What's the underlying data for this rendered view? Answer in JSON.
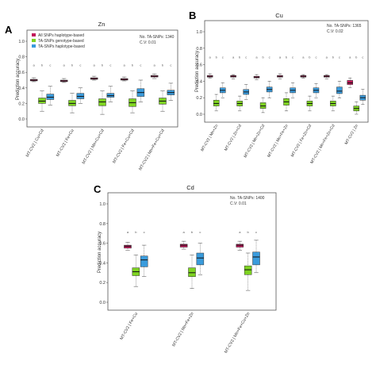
{
  "colors": {
    "all": "#c2185b",
    "geno": "#7ed321",
    "hap": "#3a9bdc"
  },
  "legend": [
    {
      "key": "all",
      "label": "All SNPs haplotype-based"
    },
    {
      "key": "geno",
      "label": "TA-SNPs genotype-based"
    },
    {
      "key": "hap",
      "label": "TA-SNPs haplotype-based"
    }
  ],
  "chart_data": [
    {
      "type": "box",
      "panel": "A",
      "title": "Zn",
      "ylabel": "Prediction accuracy",
      "ylim": [
        0,
        1.0
      ],
      "yticks": [
        "0.0",
        "0.2",
        "0.4",
        "0.6",
        "0.8",
        "1.0"
      ],
      "annotations": [
        "No. TA-SNPs: 1340",
        "C.V: 0.01"
      ],
      "categories": [
        "MT-CV2 | Cu+Cd",
        "MT-CV2 | Fe+Cu",
        "MT-CV2 | Mn+Cu+Cd",
        "MT-CV2 | Fe+Cu+Cd",
        "MT-CV2 | Mn+Fe+Cu+Cd"
      ],
      "series": [
        {
          "key": "all",
          "name": "All SNPs haplotype-based",
          "boxes": [
            {
              "min": 0.48,
              "q1": 0.49,
              "med": 0.5,
              "q3": 0.51,
              "max": 0.53
            },
            {
              "min": 0.47,
              "q1": 0.48,
              "med": 0.49,
              "q3": 0.5,
              "max": 0.52
            },
            {
              "min": 0.5,
              "q1": 0.51,
              "med": 0.52,
              "q3": 0.53,
              "max": 0.55
            },
            {
              "min": 0.49,
              "q1": 0.5,
              "med": 0.51,
              "q3": 0.52,
              "max": 0.54
            },
            {
              "min": 0.52,
              "q1": 0.54,
              "med": 0.55,
              "q3": 0.56,
              "max": 0.58
            }
          ]
        },
        {
          "key": "geno",
          "name": "TA-SNPs genotype-based",
          "boxes": [
            {
              "min": 0.1,
              "q1": 0.2,
              "med": 0.23,
              "q3": 0.27,
              "max": 0.36
            },
            {
              "min": 0.08,
              "q1": 0.17,
              "med": 0.2,
              "q3": 0.24,
              "max": 0.33
            },
            {
              "min": 0.06,
              "q1": 0.17,
              "med": 0.22,
              "q3": 0.26,
              "max": 0.36
            },
            {
              "min": 0.08,
              "q1": 0.16,
              "med": 0.21,
              "q3": 0.26,
              "max": 0.36
            },
            {
              "min": 0.1,
              "q1": 0.19,
              "med": 0.23,
              "q3": 0.27,
              "max": 0.36
            }
          ]
        },
        {
          "key": "hap",
          "name": "TA-SNPs haplotype-based",
          "boxes": [
            {
              "min": 0.18,
              "q1": 0.25,
              "med": 0.28,
              "q3": 0.32,
              "max": 0.42
            },
            {
              "min": 0.2,
              "q1": 0.26,
              "med": 0.29,
              "q3": 0.33,
              "max": 0.4
            },
            {
              "min": 0.22,
              "q1": 0.28,
              "med": 0.3,
              "q3": 0.33,
              "max": 0.42
            },
            {
              "min": 0.22,
              "q1": 0.29,
              "med": 0.34,
              "q3": 0.39,
              "max": 0.5
            },
            {
              "min": 0.24,
              "q1": 0.31,
              "med": 0.34,
              "q3": 0.37,
              "max": 0.46
            }
          ]
        }
      ],
      "sig_y": 0.68,
      "sig": [
        [
          "a",
          "b",
          "c"
        ],
        [
          "a",
          "b",
          "c"
        ],
        [
          "a",
          "b",
          "c"
        ],
        [
          "a",
          "b",
          "c"
        ],
        [
          "a",
          "b",
          "c"
        ]
      ]
    },
    {
      "type": "box",
      "panel": "B",
      "title": "Cu",
      "ylabel": "Prediction accuracy",
      "ylim": [
        0,
        1.0
      ],
      "yticks": [
        "0.0",
        "0.2",
        "0.4",
        "0.6",
        "0.8",
        "1.0"
      ],
      "annotations": [
        "No. TA-SNPs: 1365",
        "C.V: 0.02"
      ],
      "categories": [
        "MT-CV2 | Mn+Zn",
        "MT-CV2 | Zn+Cd",
        "MT-CV2 | Mn+Zn+Cd",
        "MT-CV2 | Mn+Fe+Zn",
        "MT-CV2 | Fe+Zn+Cd",
        "MT-CV2 | Mn+Fe+Zn+Cd",
        "MT-CV2 | Zn"
      ],
      "series": [
        {
          "key": "all",
          "name": "All SNPs haplotype-based",
          "boxes": [
            {
              "min": 0.44,
              "q1": 0.45,
              "med": 0.46,
              "q3": 0.47,
              "max": 0.49
            },
            {
              "min": 0.43,
              "q1": 0.45,
              "med": 0.46,
              "q3": 0.47,
              "max": 0.48
            },
            {
              "min": 0.42,
              "q1": 0.44,
              "med": 0.45,
              "q3": 0.46,
              "max": 0.48
            },
            {
              "min": 0.43,
              "q1": 0.45,
              "med": 0.46,
              "q3": 0.47,
              "max": 0.49
            },
            {
              "min": 0.44,
              "q1": 0.45,
              "med": 0.46,
              "q3": 0.47,
              "max": 0.48
            },
            {
              "min": 0.43,
              "q1": 0.45,
              "med": 0.46,
              "q3": 0.47,
              "max": 0.48
            },
            {
              "min": 0.32,
              "q1": 0.36,
              "med": 0.38,
              "q3": 0.41,
              "max": 0.44
            }
          ]
        },
        {
          "key": "geno",
          "name": "TA-SNPs genotype-based",
          "boxes": [
            {
              "min": 0.04,
              "q1": 0.1,
              "med": 0.13,
              "q3": 0.17,
              "max": 0.24
            },
            {
              "min": 0.04,
              "q1": 0.1,
              "med": 0.13,
              "q3": 0.16,
              "max": 0.22
            },
            {
              "min": 0.02,
              "q1": 0.07,
              "med": 0.1,
              "q3": 0.14,
              "max": 0.2
            },
            {
              "min": 0.04,
              "q1": 0.11,
              "med": 0.15,
              "q3": 0.19,
              "max": 0.26
            },
            {
              "min": 0.04,
              "q1": 0.1,
              "med": 0.13,
              "q3": 0.16,
              "max": 0.22
            },
            {
              "min": 0.04,
              "q1": 0.1,
              "med": 0.13,
              "q3": 0.16,
              "max": 0.22
            },
            {
              "min": 0.0,
              "q1": 0.04,
              "med": 0.07,
              "q3": 0.1,
              "max": 0.15
            }
          ]
        },
        {
          "key": "hap",
          "name": "TA-SNPs haplotype-based",
          "boxes": [
            {
              "min": 0.2,
              "q1": 0.26,
              "med": 0.29,
              "q3": 0.32,
              "max": 0.38
            },
            {
              "min": 0.18,
              "q1": 0.24,
              "med": 0.27,
              "q3": 0.3,
              "max": 0.36
            },
            {
              "min": 0.2,
              "q1": 0.27,
              "med": 0.3,
              "q3": 0.33,
              "max": 0.4
            },
            {
              "min": 0.2,
              "q1": 0.26,
              "med": 0.29,
              "q3": 0.32,
              "max": 0.38
            },
            {
              "min": 0.2,
              "q1": 0.26,
              "med": 0.29,
              "q3": 0.32,
              "max": 0.37
            },
            {
              "min": 0.2,
              "q1": 0.25,
              "med": 0.28,
              "q3": 0.33,
              "max": 0.4
            },
            {
              "min": 0.12,
              "q1": 0.17,
              "med": 0.2,
              "q3": 0.23,
              "max": 0.3
            }
          ]
        }
      ],
      "sig_y": 0.68,
      "sig": [
        [
          "a",
          "b",
          "c"
        ],
        [
          "a",
          "b",
          "c"
        ],
        [
          "a",
          "b",
          "c"
        ],
        [
          "a",
          "b",
          "c"
        ],
        [
          "a",
          "b",
          "c"
        ],
        [
          "a",
          "b",
          "c"
        ],
        [
          "a",
          "b",
          "c"
        ]
      ]
    },
    {
      "type": "box",
      "panel": "C",
      "title": "Cd",
      "ylabel": "Prediction accuracy",
      "ylim": [
        0,
        1.0
      ],
      "yticks": [
        "0.0",
        "0.2",
        "0.4",
        "0.6",
        "0.8",
        "1.0"
      ],
      "annotations": [
        "No. TA-SNPs: 1400",
        "C.V: 0.01"
      ],
      "categories": [
        "MT-CV2 | Fe+Cu",
        "MT-CV2 | Mn+Fe+Zn",
        "MT-CV2 | Mn+Fe+Cu+Zn"
      ],
      "series": [
        {
          "key": "all",
          "name": "All SNPs haplotype-based",
          "boxes": [
            {
              "min": 0.53,
              "q1": 0.55,
              "med": 0.57,
              "q3": 0.58,
              "max": 0.61
            },
            {
              "min": 0.54,
              "q1": 0.56,
              "med": 0.58,
              "q3": 0.59,
              "max": 0.62
            },
            {
              "min": 0.53,
              "q1": 0.56,
              "med": 0.58,
              "q3": 0.59,
              "max": 0.62
            }
          ]
        },
        {
          "key": "geno",
          "name": "TA-SNPs genotype-based",
          "boxes": [
            {
              "min": 0.16,
              "q1": 0.27,
              "med": 0.31,
              "q3": 0.35,
              "max": 0.48
            },
            {
              "min": 0.14,
              "q1": 0.26,
              "med": 0.3,
              "q3": 0.35,
              "max": 0.48
            },
            {
              "min": 0.12,
              "q1": 0.28,
              "med": 0.33,
              "q3": 0.37,
              "max": 0.5
            }
          ]
        },
        {
          "key": "hap",
          "name": "TA-SNPs haplotype-based",
          "boxes": [
            {
              "min": 0.26,
              "q1": 0.36,
              "med": 0.43,
              "q3": 0.47,
              "max": 0.58
            },
            {
              "min": 0.28,
              "q1": 0.38,
              "med": 0.45,
              "q3": 0.5,
              "max": 0.6
            },
            {
              "min": 0.3,
              "q1": 0.38,
              "med": 0.46,
              "q3": 0.51,
              "max": 0.63
            }
          ]
        }
      ],
      "sig_y": 0.7,
      "sig": [
        [
          "a",
          "b",
          "c"
        ],
        [
          "a",
          "b",
          "c"
        ],
        [
          "a",
          "b",
          "c"
        ]
      ]
    }
  ]
}
